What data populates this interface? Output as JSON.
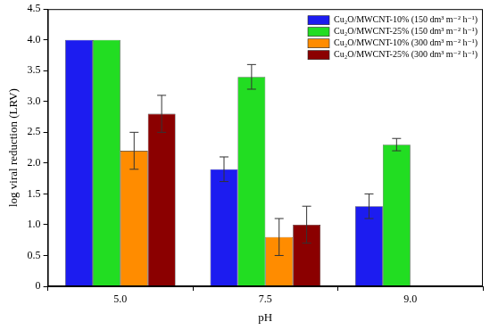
{
  "chart_data": {
    "type": "bar",
    "x_label": "pH",
    "y_label": "log viral reduction (LRV)",
    "categories": [
      "5.0",
      "7.5",
      "9.0"
    ],
    "series": [
      {
        "name": "Cu₂O/MWCNT-10% (150 dm³ m⁻² h⁻¹)",
        "color": "#1c1cf0",
        "values": [
          4.0,
          1.9,
          1.3
        ],
        "errors": [
          null,
          0.2,
          0.2
        ]
      },
      {
        "name": "Cu₂O/MWCNT-25% (150 dm³ m⁻² h⁻¹)",
        "color": "#22dd22",
        "values": [
          4.0,
          3.4,
          2.3
        ],
        "errors": [
          null,
          0.2,
          0.1
        ]
      },
      {
        "name": "Cu₂O/MWCNT-10% (300 dm³ m⁻² h⁻¹)",
        "color": "#ff8c00",
        "values": [
          2.2,
          0.8,
          null
        ],
        "errors": [
          0.3,
          0.3,
          null
        ]
      },
      {
        "name": "Cu₂O/MWCNT-25% (300 dm³ m⁻² h⁻¹)",
        "color": "#8b0000",
        "values": [
          2.8,
          1.0,
          null
        ],
        "errors": [
          0.3,
          0.3,
          null
        ]
      }
    ],
    "ylim": [
      0,
      4.5
    ],
    "yticks": [
      0,
      0.5,
      {
        "value": 1,
        "label": "1.0"
      },
      1.5,
      {
        "value": 2,
        "label": "2.0"
      },
      2.5,
      {
        "value": 3,
        "label": "3.0"
      },
      3.5,
      {
        "value": 4,
        "label": "4.0"
      },
      4.5
    ],
    "grid": false,
    "legend": "upper right"
  }
}
